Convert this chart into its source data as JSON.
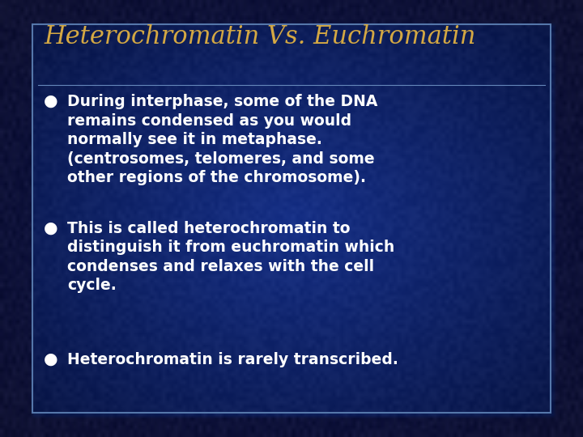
{
  "title": "Heterochromatin Vs. Euchromatin",
  "title_color": "#D4A843",
  "title_fontsize": 22,
  "title_font": "DejaVu Serif",
  "bullet_color": "#FFFFFF",
  "bullet_fontsize": 13.5,
  "bullet_font": "DejaVu Sans",
  "bullet_symbol": "●",
  "bullets": [
    "During interphase, some of the DNA\nremains condensed as you would\nnormally see it in metaphase.\n(centrosomes, telomeres, and some\nother regions of the chromosome).",
    "This is called heterochromatin to\ndistinguish it from euchromatin which\ncondenses and relaxes with the cell\ncycle.",
    "Heterochromatin is rarely transcribed."
  ],
  "divider_color": "#6688bb",
  "inner_box_edge_color": "#5577aa",
  "figsize": [
    7.2,
    5.4
  ],
  "dpi": 100,
  "bg_outer": "#0d1a3a",
  "bg_inner_center": "#1a3a8a",
  "bg_inner_edge": "#0a1540"
}
